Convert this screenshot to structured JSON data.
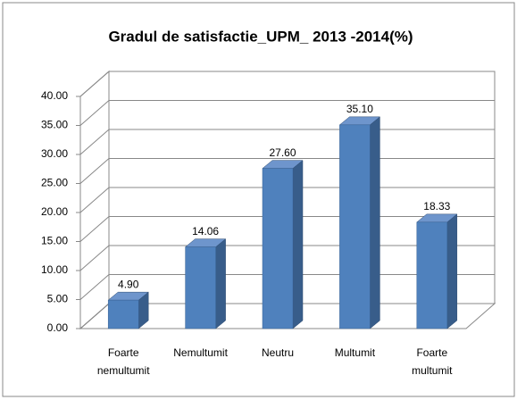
{
  "chart_data": {
    "type": "bar",
    "title": "Gradul de satisfactie_UPM_ 2013 -2014(%)",
    "categories": [
      "Foarte nemultumit",
      "Nemultumit",
      "Neutru",
      "Multumit",
      "Foarte multumit"
    ],
    "values": [
      4.9,
      14.06,
      27.6,
      35.1,
      18.33
    ],
    "value_labels": [
      "4.90",
      "14.06",
      "27.60",
      "35.10",
      "18.33"
    ],
    "color": "#4f81bd",
    "ylim": [
      0,
      40
    ],
    "yticks": [
      {
        "value": 0,
        "label": "0.00"
      },
      {
        "value": 5,
        "label": "5.00"
      },
      {
        "value": 10,
        "label": "10.00"
      },
      {
        "value": 15,
        "label": "15.00"
      },
      {
        "value": 20,
        "label": "20.00"
      },
      {
        "value": 25,
        "label": "25.00"
      },
      {
        "value": 30,
        "label": "30.00"
      },
      {
        "value": 35,
        "label": "35.00"
      },
      {
        "value": 40,
        "label": "40.00"
      }
    ],
    "grid": true
  }
}
